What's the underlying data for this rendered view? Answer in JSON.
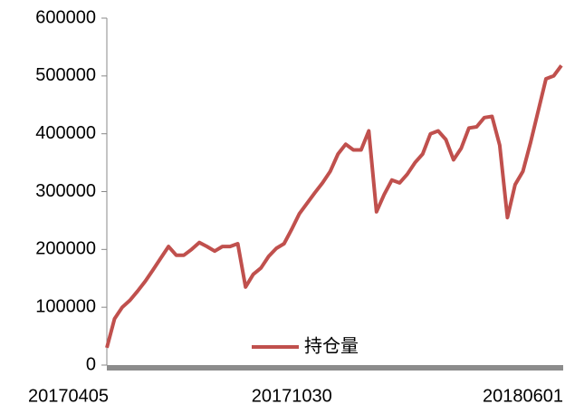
{
  "chart_data": {
    "type": "line",
    "categories": [
      "20170405",
      null,
      null,
      null,
      null,
      null,
      null,
      null,
      null,
      null,
      null,
      null,
      null,
      null,
      null,
      null,
      null,
      null,
      null,
      null,
      null,
      null,
      null,
      null,
      null,
      null,
      null,
      null,
      null,
      "20171030",
      null,
      null,
      null,
      null,
      null,
      null,
      null,
      null,
      null,
      null,
      null,
      null,
      null,
      null,
      null,
      null,
      null,
      null,
      null,
      null,
      null,
      null,
      null,
      null,
      null,
      null,
      null,
      null,
      null,
      "20180601"
    ],
    "series": [
      {
        "name": "持仓量",
        "color": "#c0504d",
        "values": [
          30000,
          80000,
          100000,
          112000,
          128000,
          145000,
          165000,
          185000,
          205000,
          190000,
          190000,
          200000,
          212000,
          205000,
          197000,
          205000,
          205000,
          210000,
          135000,
          157000,
          168000,
          188000,
          202000,
          210000,
          235000,
          262000,
          280000,
          298000,
          315000,
          335000,
          365000,
          382000,
          372000,
          372000,
          405000,
          265000,
          295000,
          320000,
          315000,
          330000,
          350000,
          365000,
          400000,
          405000,
          390000,
          355000,
          375000,
          410000,
          412000,
          428000,
          430000,
          380000,
          255000,
          312000,
          335000,
          385000,
          440000,
          495000,
          500000,
          518000
        ]
      }
    ],
    "ylim": [
      0,
      600000
    ],
    "yticks": [
      0,
      100000,
      200000,
      300000,
      400000,
      500000,
      600000
    ],
    "legend": "bottom"
  }
}
